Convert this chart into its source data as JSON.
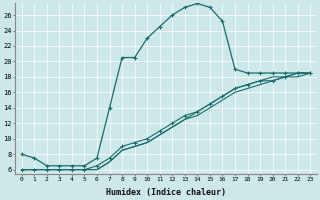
{
  "xlabel": "Humidex (Indice chaleur)",
  "ylabel": "",
  "bg_color": "#cce8e8",
  "line_color": "#1a6b6b",
  "xlim": [
    -0.5,
    23.5
  ],
  "ylim": [
    5.5,
    27.5
  ],
  "yticks": [
    6,
    8,
    10,
    12,
    14,
    16,
    18,
    20,
    22,
    24,
    26
  ],
  "xticks": [
    0,
    1,
    2,
    3,
    4,
    5,
    6,
    7,
    8,
    9,
    10,
    11,
    12,
    13,
    14,
    15,
    16,
    17,
    18,
    19,
    20,
    21,
    22,
    23
  ],
  "series1_x": [
    0,
    1,
    2,
    3,
    4,
    5,
    6,
    7,
    8,
    9,
    10,
    11,
    12,
    13,
    14,
    15,
    16,
    17,
    18,
    19,
    20,
    21,
    22,
    23
  ],
  "series1_y": [
    8,
    7.5,
    6.5,
    6.5,
    6.5,
    6.5,
    7.5,
    14.0,
    20.5,
    20.5,
    23.0,
    24.5,
    26.0,
    27.0,
    27.5,
    27.0,
    25.2,
    19.0,
    18.5,
    18.5,
    18.5,
    18.5,
    18.5,
    18.5
  ],
  "series2_x": [
    0,
    1,
    2,
    3,
    4,
    5,
    6,
    7,
    8,
    9,
    10,
    11,
    12,
    13,
    14,
    15,
    16,
    17,
    18,
    19,
    20,
    21,
    22,
    23
  ],
  "series2_y": [
    6,
    6,
    6,
    6,
    6,
    6,
    6.5,
    7.5,
    9.0,
    9.5,
    10.0,
    11.0,
    12.0,
    13.0,
    13.5,
    14.5,
    15.5,
    16.5,
    17.0,
    17.5,
    17.5,
    18.0,
    18.5,
    18.5
  ],
  "series3_x": [
    0,
    1,
    2,
    3,
    4,
    5,
    6,
    7,
    8,
    9,
    10,
    11,
    12,
    13,
    14,
    15,
    16,
    17,
    18,
    19,
    20,
    21,
    22,
    23
  ],
  "series3_y": [
    6,
    6,
    6,
    6,
    6,
    6,
    6,
    7,
    8.5,
    9,
    9.5,
    10.5,
    11.5,
    12.5,
    13.5,
    14.5,
    15.5,
    16.5,
    17.0,
    17.5,
    18.0,
    18.0,
    18.5,
    18.5
  ],
  "series4_x": [
    0,
    1,
    2,
    3,
    4,
    5,
    6,
    7,
    8,
    9,
    10,
    11,
    12,
    13,
    14,
    15,
    16,
    17,
    18,
    19,
    20,
    21,
    22,
    23
  ],
  "series4_y": [
    6,
    6,
    6,
    6,
    6,
    6,
    6,
    7,
    8.5,
    9,
    9.5,
    10.5,
    11.5,
    12.5,
    13.0,
    14.0,
    15.0,
    16.0,
    16.5,
    17.0,
    17.5,
    18.0,
    18.0,
    18.5
  ]
}
